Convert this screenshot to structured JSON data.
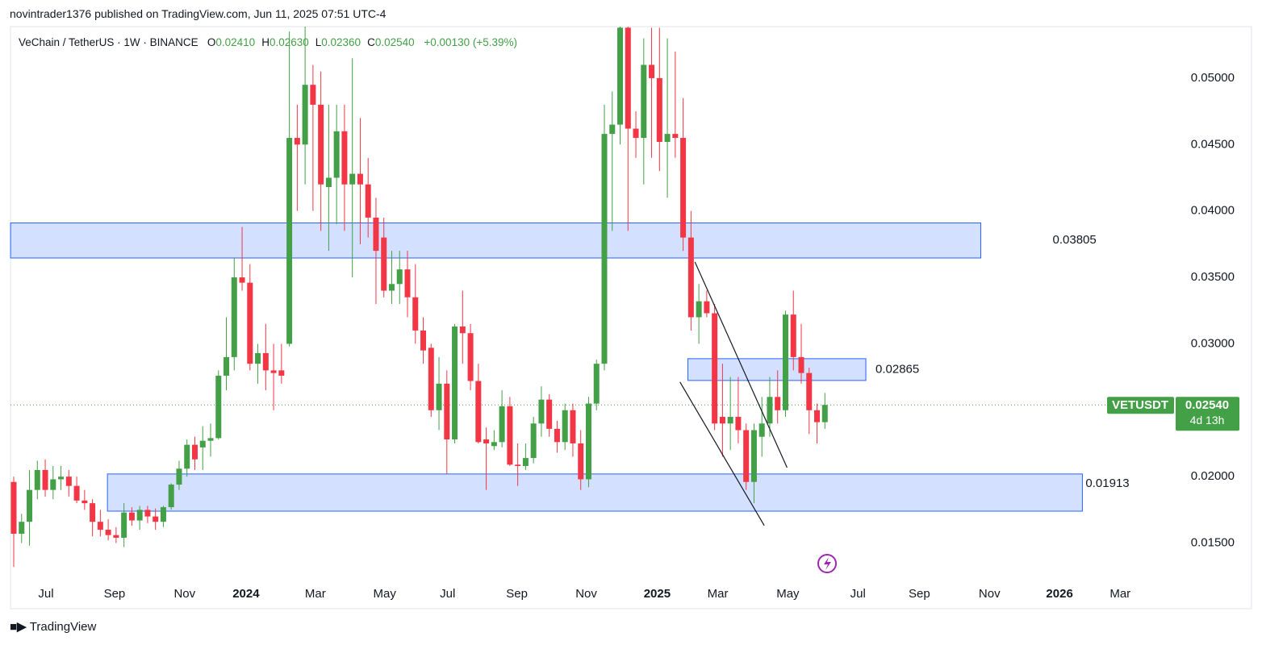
{
  "header": "novintrader1376 published on TradingView.com, Jun 11, 2025 07:51 UTC-4",
  "footer": "TradingView",
  "chart_data": {
    "type": "candlestick",
    "legend": {
      "name": "VeChain / TetherUS · 1W · BINANCE",
      "fields": [
        {
          "key": "O",
          "value": "0.02410"
        },
        {
          "key": "H",
          "value": "0.02630"
        },
        {
          "key": "L",
          "value": "0.02360"
        },
        {
          "key": "C",
          "value": "0.02540"
        }
      ],
      "change": "+0.00130 (+5.39%)"
    },
    "up_color": "#43a047",
    "down_color": "#f23645",
    "x": [
      0,
      1,
      2,
      3,
      4,
      5,
      6,
      7,
      8,
      9,
      10,
      11,
      12,
      13,
      14,
      15,
      16,
      17,
      18,
      19,
      20,
      21,
      22,
      23,
      24,
      25,
      26,
      27,
      28,
      29,
      30,
      31,
      32,
      33,
      34,
      35,
      36,
      37,
      38,
      39,
      40,
      41,
      42,
      43,
      44,
      45,
      46,
      47,
      48,
      49,
      50,
      51,
      52,
      53,
      54,
      55,
      56,
      57,
      58,
      59,
      60,
      61,
      62,
      63,
      64,
      65,
      66,
      67,
      68,
      69,
      70,
      71,
      72,
      73,
      74,
      75,
      76,
      77,
      78,
      79,
      80,
      81,
      82,
      83,
      84,
      85,
      86,
      87,
      88,
      89,
      90,
      91,
      92,
      93,
      94,
      95,
      96,
      97,
      98,
      99,
      100,
      101,
      102,
      103
    ],
    "open": [
      0.0196,
      0.0157,
      0.0166,
      0.019,
      0.0205,
      0.019,
      0.0198,
      0.02,
      0.0193,
      0.0182,
      0.018,
      0.0166,
      0.016,
      0.0156,
      0.0154,
      0.0173,
      0.0167,
      0.0175,
      0.017,
      0.0166,
      0.0177,
      0.0194,
      0.0206,
      0.0224,
      0.0222,
      0.0227,
      0.0229,
      0.0276,
      0.029,
      0.035,
      0.0346,
      0.0285,
      0.0293,
      0.028,
      0.028,
      0.03,
      0.0455,
      0.045,
      0.0495,
      0.048,
      0.0418,
      0.0425,
      0.046,
      0.042,
      0.0428,
      0.042,
      0.0395,
      0.038,
      0.034,
      0.0345,
      0.0356,
      0.0335,
      0.031,
      0.0297,
      0.025,
      0.027,
      0.0228,
      0.0313,
      0.0308,
      0.0272,
      0.0228,
      0.0223,
      0.0226,
      0.0253,
      0.0209,
      0.0208,
      0.0214,
      0.024,
      0.0258,
      0.0236,
      0.0226,
      0.025,
      0.0225,
      0.0198,
      0.0255,
      0.0285,
      0.0458,
      0.0465,
      0.0538,
      0.0462,
      0.0455,
      0.051,
      0.05,
      0.0452,
      0.0458,
      0.0455,
      0.038,
      0.032,
      0.0332,
      0.0323,
      0.0245,
      0.024,
      0.0245,
      0.0235,
      0.0196,
      0.023,
      0.024,
      0.026,
      0.025,
      0.0322,
      0.029,
      0.0278,
      0.025,
      0.0241
    ],
    "high": [
      0.02,
      0.0172,
      0.0205,
      0.0212,
      0.0213,
      0.0208,
      0.0208,
      0.0205,
      0.02,
      0.019,
      0.0183,
      0.0175,
      0.0168,
      0.0162,
      0.018,
      0.0177,
      0.0178,
      0.0178,
      0.0176,
      0.0178,
      0.0195,
      0.0212,
      0.0228,
      0.023,
      0.0238,
      0.024,
      0.028,
      0.032,
      0.0365,
      0.0388,
      0.036,
      0.03,
      0.0315,
      0.03,
      0.03,
      0.0535,
      0.048,
      0.054,
      0.051,
      0.0505,
      0.048,
      0.048,
      0.048,
      0.0515,
      0.047,
      0.044,
      0.041,
      0.0395,
      0.037,
      0.037,
      0.037,
      0.036,
      0.032,
      0.03,
      0.029,
      0.028,
      0.0315,
      0.034,
      0.0315,
      0.0285,
      0.0237,
      0.0235,
      0.0265,
      0.026,
      0.0225,
      0.0225,
      0.0245,
      0.0268,
      0.0262,
      0.0242,
      0.0255,
      0.0255,
      0.0235,
      0.026,
      0.0288,
      0.048,
      0.049,
      0.054,
      0.054,
      0.0475,
      0.053,
      0.0538,
      0.0538,
      0.053,
      0.052,
      0.0485,
      0.04,
      0.0345,
      0.034,
      0.033,
      0.0285,
      0.0275,
      0.0275,
      0.024,
      0.024,
      0.026,
      0.0275,
      0.028,
      0.0325,
      0.034,
      0.0315,
      0.0282,
      0.0255,
      0.0263
    ],
    "low": [
      0.0132,
      0.015,
      0.0148,
      0.0183,
      0.0185,
      0.0183,
      0.019,
      0.0185,
      0.018,
      0.0175,
      0.0155,
      0.0155,
      0.0152,
      0.015,
      0.0147,
      0.0163,
      0.016,
      0.0165,
      0.016,
      0.0162,
      0.0175,
      0.019,
      0.02,
      0.0205,
      0.0205,
      0.0215,
      0.0228,
      0.0265,
      0.028,
      0.034,
      0.028,
      0.027,
      0.0265,
      0.025,
      0.027,
      0.0298,
      0.04,
      0.042,
      0.04,
      0.0385,
      0.037,
      0.039,
      0.0385,
      0.035,
      0.0375,
      0.038,
      0.033,
      0.0335,
      0.033,
      0.033,
      0.032,
      0.03,
      0.0285,
      0.0245,
      0.0235,
      0.0202,
      0.0225,
      0.0285,
      0.0265,
      0.0225,
      0.019,
      0.022,
      0.0222,
      0.0208,
      0.0193,
      0.0205,
      0.021,
      0.023,
      0.023,
      0.0218,
      0.022,
      0.0215,
      0.019,
      0.0192,
      0.025,
      0.028,
      0.0385,
      0.045,
      0.0385,
      0.044,
      0.042,
      0.044,
      0.043,
      0.041,
      0.044,
      0.037,
      0.031,
      0.03,
      0.032,
      0.0235,
      0.0215,
      0.022,
      0.0225,
      0.019,
      0.018,
      0.0215,
      0.023,
      0.024,
      0.0245,
      0.028,
      0.027,
      0.0232,
      0.0225,
      0.0236
    ],
    "close": [
      0.0157,
      0.0166,
      0.019,
      0.0205,
      0.019,
      0.0198,
      0.02,
      0.0193,
      0.0182,
      0.018,
      0.0166,
      0.016,
      0.0156,
      0.0154,
      0.0173,
      0.0167,
      0.0175,
      0.017,
      0.0166,
      0.0177,
      0.0194,
      0.0206,
      0.0224,
      0.0213,
      0.0227,
      0.0229,
      0.0276,
      0.029,
      0.035,
      0.0346,
      0.0285,
      0.0293,
      0.028,
      0.0278,
      0.0276,
      0.0455,
      0.045,
      0.0495,
      0.048,
      0.042,
      0.0425,
      0.046,
      0.042,
      0.0428,
      0.042,
      0.0395,
      0.037,
      0.034,
      0.0345,
      0.0356,
      0.0335,
      0.031,
      0.0295,
      0.025,
      0.027,
      0.0228,
      0.0313,
      0.0308,
      0.0272,
      0.0226,
      0.0225,
      0.0226,
      0.0253,
      0.0209,
      0.0208,
      0.0214,
      0.024,
      0.0258,
      0.0236,
      0.0226,
      0.025,
      0.0225,
      0.0198,
      0.0255,
      0.0285,
      0.0458,
      0.0465,
      0.0538,
      0.0462,
      0.0455,
      0.051,
      0.05,
      0.0452,
      0.0458,
      0.0455,
      0.038,
      0.032,
      0.0332,
      0.0323,
      0.024,
      0.024,
      0.0245,
      0.0235,
      0.0196,
      0.0235,
      0.024,
      0.026,
      0.025,
      0.0322,
      0.029,
      0.0278,
      0.025,
      0.0241,
      0.0254
    ],
    "xlim": [
      -0.41,
      145.8
    ],
    "xticks": [
      {
        "value": 4.1,
        "label": "Jul"
      },
      {
        "value": 12.8,
        "label": "Sep"
      },
      {
        "value": 21.7,
        "label": "Nov"
      },
      {
        "value": 29.5,
        "label": "2024"
      },
      {
        "value": 38.3,
        "label": "Mar"
      },
      {
        "value": 47.1,
        "label": "May"
      },
      {
        "value": 55.1,
        "label": "Jul"
      },
      {
        "value": 63.9,
        "label": "Sep"
      },
      {
        "value": 72.7,
        "label": "Nov"
      },
      {
        "value": 81.7,
        "label": "2025"
      },
      {
        "value": 89.4,
        "label": "Mar"
      },
      {
        "value": 98.3,
        "label": "May"
      },
      {
        "value": 107.2,
        "label": "Jul"
      },
      {
        "value": 115.0,
        "label": "Sep"
      },
      {
        "value": 123.9,
        "label": "Nov"
      },
      {
        "value": 132.8,
        "label": "2026"
      },
      {
        "value": 140.5,
        "label": "Mar"
      }
    ],
    "ylim": [
      0.01218,
      0.05388
    ],
    "yticks": [
      {
        "value": 0.015,
        "label": "0.01500"
      },
      {
        "value": 0.02,
        "label": "0.02000"
      },
      {
        "value": 0.025,
        "label": "0.02500"
      },
      {
        "value": 0.03,
        "label": "0.03000"
      },
      {
        "value": 0.035,
        "label": "0.03500"
      },
      {
        "value": 0.04,
        "label": "0.04000"
      },
      {
        "value": 0.045,
        "label": "0.04500"
      },
      {
        "value": 0.05,
        "label": "0.05000"
      }
    ],
    "zones": [
      {
        "low": 0.03646,
        "high": 0.0391,
        "x0": -0.4,
        "x1": 122.8,
        "label": "0.03805"
      },
      {
        "low": 0.02724,
        "high": 0.02888,
        "x0": 85.6,
        "x1": 108.2,
        "label": "0.02865"
      },
      {
        "low": 0.0174,
        "high": 0.0202,
        "x0": 11.9,
        "x1": 135.7,
        "label": "0.01913"
      }
    ],
    "trendlines": [
      {
        "x": [
          86.5,
          98.2
        ],
        "y": [
          0.03616,
          0.02068
        ]
      },
      {
        "x": [
          84.6,
          95.3
        ],
        "y": [
          0.02712,
          0.01632
        ]
      }
    ],
    "price_tag": {
      "symbol": "VETUSDT",
      "price": "0.02540",
      "countdown": "4d 13h"
    }
  }
}
